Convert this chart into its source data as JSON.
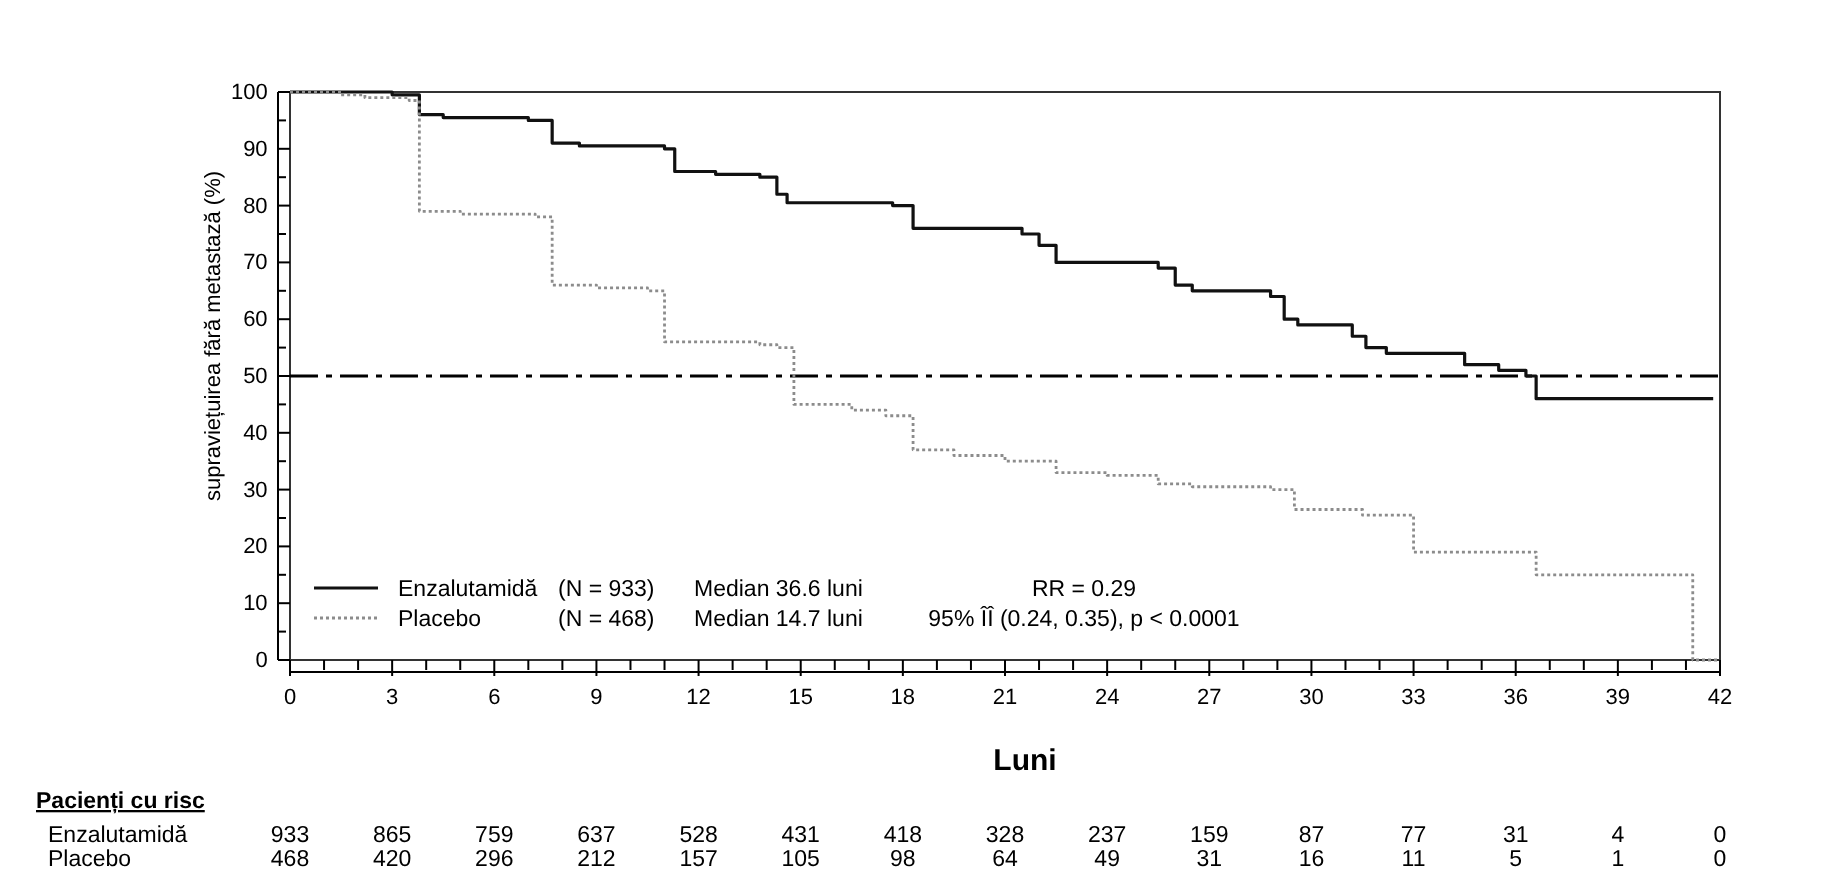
{
  "chart_data": {
    "type": "step",
    "xlabel": "Luni",
    "ylabel": "supraviețuirea fără metastază (%)",
    "xlim": [
      0,
      42
    ],
    "ylim": [
      0,
      100
    ],
    "xticks": [
      0,
      {
        "value": 1,
        "label": null
      },
      {
        "value": 2,
        "label": null
      },
      3,
      {
        "value": 4,
        "label": null
      },
      {
        "value": 5,
        "label": null
      },
      6,
      {
        "value": 7,
        "label": null
      },
      {
        "value": 8,
        "label": null
      },
      9,
      {
        "value": 10,
        "label": null
      },
      {
        "value": 11,
        "label": null
      },
      12,
      {
        "value": 13,
        "label": null
      },
      {
        "value": 14,
        "label": null
      },
      15,
      {
        "value": 16,
        "label": null
      },
      {
        "value": 17,
        "label": null
      },
      18,
      {
        "value": 19,
        "label": null
      },
      {
        "value": 20,
        "label": null
      },
      21,
      {
        "value": 22,
        "label": null
      },
      {
        "value": 23,
        "label": null
      },
      24,
      {
        "value": 25,
        "label": null
      },
      {
        "value": 26,
        "label": null
      },
      27,
      {
        "value": 28,
        "label": null
      },
      {
        "value": 29,
        "label": null
      },
      30,
      {
        "value": 31,
        "label": null
      },
      {
        "value": 32,
        "label": null
      },
      33,
      {
        "value": 34,
        "label": null
      },
      {
        "value": 35,
        "label": null
      },
      36,
      {
        "value": 37,
        "label": null
      },
      {
        "value": 38,
        "label": null
      },
      39,
      {
        "value": 40,
        "label": null
      },
      {
        "value": 41,
        "label": null
      },
      42
    ],
    "yticks": [
      0,
      {
        "value": 5,
        "label": null
      },
      10,
      {
        "value": 15,
        "label": null
      },
      20,
      {
        "value": 25,
        "label": null
      },
      30,
      {
        "value": 35,
        "label": null
      },
      40,
      {
        "value": 45,
        "label": null
      },
      50,
      {
        "value": 55,
        "label": null
      },
      60,
      {
        "value": 65,
        "label": null
      },
      70,
      {
        "value": 75,
        "label": null
      },
      80,
      {
        "value": 85,
        "label": null
      },
      90,
      {
        "value": 95,
        "label": null
      },
      100
    ],
    "legend": "bottom left",
    "grid": false,
    "marker": "none",
    "ref_lines": [
      {
        "axis": "y",
        "value": 50,
        "line_style": "dashdot",
        "color": "#000000"
      }
    ],
    "series": [
      {
        "name": "Enzalutamidă",
        "color": "#111111",
        "line_style": "solid",
        "x": [
          0,
          3,
          3.8,
          4.5,
          7,
          7.7,
          8.5,
          11,
          11.3,
          12.5,
          13.8,
          14.3,
          14.6,
          17.7,
          18.3,
          21.5,
          22,
          22.5,
          25.5,
          26,
          26.5,
          28.8,
          29.2,
          29.6,
          31.2,
          31.6,
          32.2,
          34.5,
          35.5,
          36.3,
          36.6,
          41.8
        ],
        "values": [
          100,
          99.5,
          96,
          95.5,
          95,
          91,
          90.5,
          90,
          86,
          85.5,
          85,
          82,
          80.5,
          80,
          76,
          75,
          73,
          70,
          69,
          66,
          65,
          64,
          60,
          59,
          57,
          55,
          54,
          52,
          51,
          50,
          46,
          46
        ]
      },
      {
        "name": "Placebo",
        "color": "#8c8c8c",
        "line_style": "dotted",
        "x": [
          0,
          1.5,
          2.2,
          3.5,
          3.8,
          5,
          7.2,
          7.7,
          9,
          10.5,
          11,
          13.8,
          14.3,
          14.8,
          16.5,
          17.5,
          18.3,
          19.5,
          21,
          22.5,
          24,
          25.5,
          26.5,
          28.8,
          29.5,
          31.5,
          33,
          36.3,
          36.6,
          41,
          41.2,
          42
        ],
        "values": [
          100,
          99.5,
          99,
          98.5,
          79,
          78.5,
          78,
          66,
          65.5,
          65,
          56,
          55.5,
          55,
          45,
          44,
          43,
          37,
          36,
          35,
          33,
          32.5,
          31,
          30.5,
          30,
          26.5,
          25.5,
          19,
          19,
          15,
          15,
          0,
          0
        ]
      }
    ],
    "annotations": [
      "(N = 933)",
      "Median 36.6 luni",
      "(N = 468)",
      "Median 14.7 luni",
      "RR = 0.29",
      "95% ÎÎ (0.24, 0.35), p < 0.0001",
      "Pacienți cu risc",
      "Enzalutamidă",
      "933",
      "865",
      "759",
      "637",
      "528",
      "431",
      "418",
      "328",
      "237",
      "159",
      "87",
      "77",
      "31",
      "4",
      "0",
      "Placebo",
      "468",
      "420",
      "296",
      "212",
      "157",
      "105",
      "98",
      "64",
      "49",
      "31",
      "16",
      "11",
      "5",
      "1",
      "0"
    ]
  }
}
